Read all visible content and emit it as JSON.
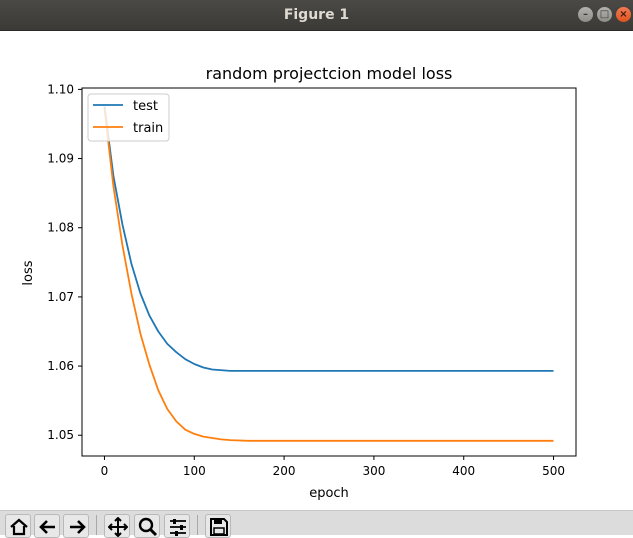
{
  "window": {
    "title": "Figure 1"
  },
  "toolbar": {
    "buttons": [
      {
        "name": "home-button",
        "icon": "home-icon"
      },
      {
        "name": "back-button",
        "icon": "arrow-left-icon"
      },
      {
        "name": "forward-button",
        "icon": "arrow-right-icon"
      },
      {
        "name": "pan-button",
        "icon": "move-icon"
      },
      {
        "name": "zoom-button",
        "icon": "zoom-icon"
      },
      {
        "name": "configure-subplots-button",
        "icon": "sliders-icon"
      },
      {
        "name": "save-button",
        "icon": "floppy-disk-icon"
      }
    ]
  },
  "chart_data": {
    "type": "line",
    "title": "random projectcion model loss",
    "xlabel": "epoch",
    "ylabel": "loss",
    "xlim": [
      -25,
      525
    ],
    "ylim": [
      1.047,
      1.1002
    ],
    "xticks": [
      0,
      100,
      200,
      300,
      400,
      500
    ],
    "yticks": [
      1.05,
      1.06,
      1.07,
      1.08,
      1.09,
      1.1
    ],
    "ytick_labels": [
      "1.05",
      "1.06",
      "1.07",
      "1.08",
      "1.09",
      "1.10"
    ],
    "grid": false,
    "legend_position": "upper left",
    "series": [
      {
        "name": "test",
        "color": "#1f77b4",
        "x": [
          0,
          10,
          20,
          30,
          40,
          50,
          60,
          70,
          80,
          90,
          100,
          110,
          120,
          140,
          160,
          200,
          300,
          400,
          500
        ],
        "y": [
          1.0975,
          1.0875,
          1.0805,
          1.0748,
          1.0705,
          1.0673,
          1.065,
          1.0632,
          1.062,
          1.061,
          1.0603,
          1.0598,
          1.0595,
          1.0593,
          1.0593,
          1.0593,
          1.0593,
          1.0593,
          1.0593
        ]
      },
      {
        "name": "train",
        "color": "#ff7f0e",
        "x": [
          0,
          10,
          20,
          30,
          40,
          50,
          60,
          70,
          80,
          90,
          100,
          110,
          120,
          130,
          140,
          160,
          180,
          200,
          250,
          300,
          400,
          500
        ],
        "y": [
          1.0972,
          1.086,
          1.0775,
          1.0705,
          1.0647,
          1.0602,
          1.0565,
          1.0538,
          1.052,
          1.0508,
          1.0502,
          1.0498,
          1.0496,
          1.0494,
          1.0493,
          1.0492,
          1.0492,
          1.0492,
          1.0492,
          1.0492,
          1.0492,
          1.0492
        ]
      }
    ]
  }
}
